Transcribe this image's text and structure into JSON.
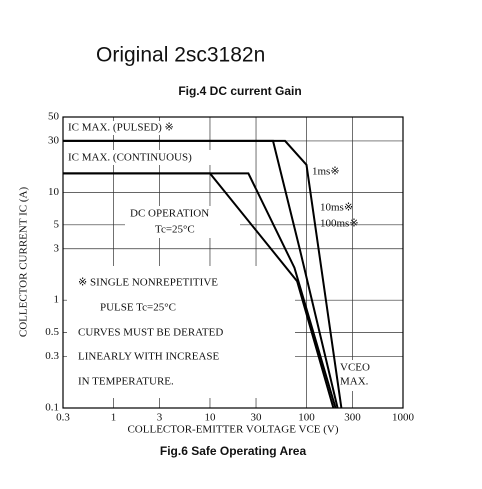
{
  "header": "Original 2sc3182n",
  "chart_data": {
    "type": "line",
    "log_x": true,
    "log_y": true,
    "grid": true,
    "subtitle": "Fig.4  DC current Gain",
    "title": "Fig.6  Safe Operating Area",
    "x_label": "COLLECTOR-EMITTER VOLTAGE  VCE  (V)",
    "y_label": "COLLECTOR CURRENT  IC  (A)",
    "xlim": [
      0.3,
      1000
    ],
    "ylim": [
      0.1,
      50
    ],
    "xticks": [
      0.3,
      1,
      3,
      10,
      30,
      100,
      300,
      1000
    ],
    "yticks": [
      0.1,
      0.3,
      0.5,
      1,
      3,
      5,
      10,
      30,
      50
    ],
    "series": [
      {
        "name": "1ms※",
        "color": "#000000",
        "x": [
          0.3,
          60,
          100,
          230
        ],
        "values": [
          30,
          30,
          18,
          0.1
        ]
      },
      {
        "name": "10ms※",
        "color": "#000000",
        "x": [
          0.3,
          45,
          85,
          210
        ],
        "values": [
          30,
          30,
          3,
          0.1
        ]
      },
      {
        "name": "100ms※",
        "color": "#000000",
        "x": [
          0.3,
          25,
          75,
          200
        ],
        "values": [
          15,
          15,
          2,
          0.1
        ]
      },
      {
        "name": "DC OPERATION",
        "color": "#000000",
        "x": [
          0.3,
          10,
          80,
          190
        ],
        "values": [
          15,
          15,
          1.5,
          0.1
        ]
      }
    ],
    "annotations": [
      "IC MAX. (PULSED) ※",
      "IC MAX. (CONTINUOUS)",
      "Tc=25°C",
      "※  SINGLE NONREPETITIVE",
      "PULSE   Tc=25°C",
      "CURVES MUST BE DERATED",
      "LINEARLY WITH INCREASE",
      "IN TEMPERATURE.",
      "VCEO",
      "MAX."
    ]
  }
}
